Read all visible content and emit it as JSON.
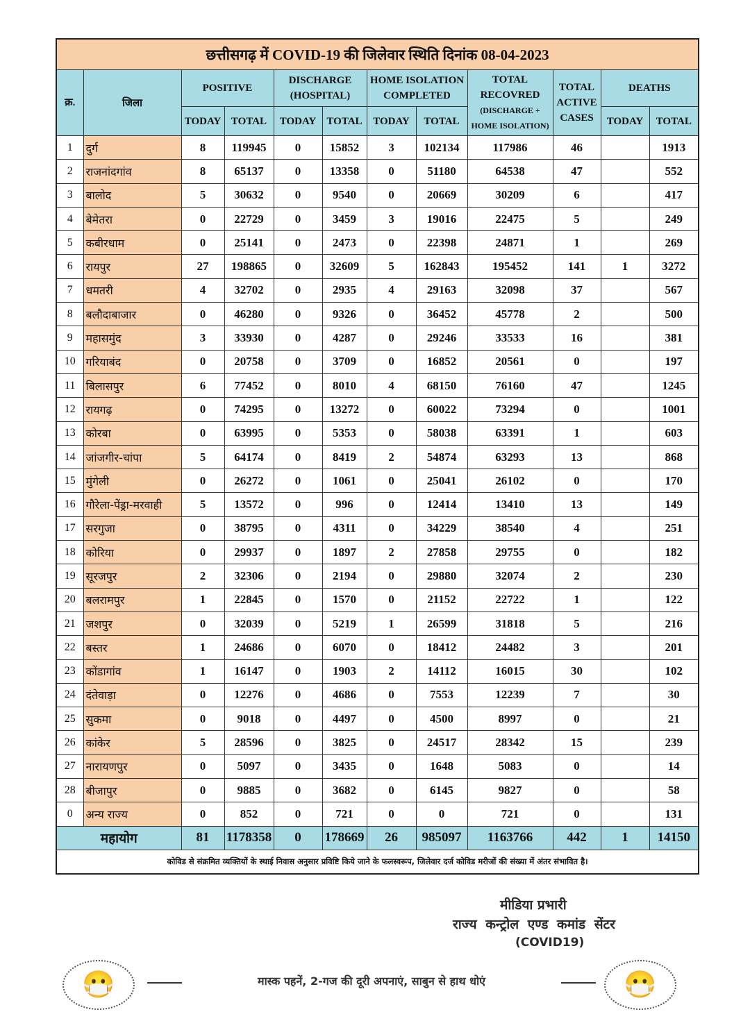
{
  "title": "छत्तीसगढ़ में COVID-19 की जिलेवार स्थिति दिनांक 08-04-2023",
  "headers": {
    "sn": "क्र.",
    "district": "जिला",
    "positive": "POSITIVE",
    "discharge": "DISCHARGE (HOSPITAL)",
    "home_isolation": "HOME ISOLATION COMPLETED",
    "recovered": "TOTAL RECOVRED",
    "recovered_sub": "(DISCHARGE + HOME ISOLATION)",
    "active": "TOTAL ACTIVE CASES",
    "deaths": "DEATHS",
    "today": "TODAY",
    "total": "TOTAL"
  },
  "rows": [
    [
      "1",
      "दुर्ग",
      "8",
      "119945",
      "0",
      "15852",
      "3",
      "102134",
      "117986",
      "46",
      "",
      "1913"
    ],
    [
      "2",
      "राजनांदगांव",
      "8",
      "65137",
      "0",
      "13358",
      "0",
      "51180",
      "64538",
      "47",
      "",
      "552"
    ],
    [
      "3",
      "बालोद",
      "5",
      "30632",
      "0",
      "9540",
      "0",
      "20669",
      "30209",
      "6",
      "",
      "417"
    ],
    [
      "4",
      "बेमेतरा",
      "0",
      "22729",
      "0",
      "3459",
      "3",
      "19016",
      "22475",
      "5",
      "",
      "249"
    ],
    [
      "5",
      "कबीरधाम",
      "0",
      "25141",
      "0",
      "2473",
      "0",
      "22398",
      "24871",
      "1",
      "",
      "269"
    ],
    [
      "6",
      "रायपुर",
      "27",
      "198865",
      "0",
      "32609",
      "5",
      "162843",
      "195452",
      "141",
      "1",
      "3272"
    ],
    [
      "7",
      "धमतरी",
      "4",
      "32702",
      "0",
      "2935",
      "4",
      "29163",
      "32098",
      "37",
      "",
      "567"
    ],
    [
      "8",
      "बलौदाबाजार",
      "0",
      "46280",
      "0",
      "9326",
      "0",
      "36452",
      "45778",
      "2",
      "",
      "500"
    ],
    [
      "9",
      "महासमुंद",
      "3",
      "33930",
      "0",
      "4287",
      "0",
      "29246",
      "33533",
      "16",
      "",
      "381"
    ],
    [
      "10",
      "गरियाबंद",
      "0",
      "20758",
      "0",
      "3709",
      "0",
      "16852",
      "20561",
      "0",
      "",
      "197"
    ],
    [
      "11",
      "बिलासपुर",
      "6",
      "77452",
      "0",
      "8010",
      "4",
      "68150",
      "76160",
      "47",
      "",
      "1245"
    ],
    [
      "12",
      "रायगढ़",
      "0",
      "74295",
      "0",
      "13272",
      "0",
      "60022",
      "73294",
      "0",
      "",
      "1001"
    ],
    [
      "13",
      "कोरबा",
      "0",
      "63995",
      "0",
      "5353",
      "0",
      "58038",
      "63391",
      "1",
      "",
      "603"
    ],
    [
      "14",
      "जांजगीर-चांपा",
      "5",
      "64174",
      "0",
      "8419",
      "2",
      "54874",
      "63293",
      "13",
      "",
      "868"
    ],
    [
      "15",
      "मुंगेली",
      "0",
      "26272",
      "0",
      "1061",
      "0",
      "25041",
      "26102",
      "0",
      "",
      "170"
    ],
    [
      "16",
      "गौरेला-पेंड्रा-मरवाही",
      "5",
      "13572",
      "0",
      "996",
      "0",
      "12414",
      "13410",
      "13",
      "",
      "149"
    ],
    [
      "17",
      "सरगुजा",
      "0",
      "38795",
      "0",
      "4311",
      "0",
      "34229",
      "38540",
      "4",
      "",
      "251"
    ],
    [
      "18",
      "कोरिया",
      "0",
      "29937",
      "0",
      "1897",
      "2",
      "27858",
      "29755",
      "0",
      "",
      "182"
    ],
    [
      "19",
      "सूरजपुर",
      "2",
      "32306",
      "0",
      "2194",
      "0",
      "29880",
      "32074",
      "2",
      "",
      "230"
    ],
    [
      "20",
      "बलरामपुर",
      "1",
      "22845",
      "0",
      "1570",
      "0",
      "21152",
      "22722",
      "1",
      "",
      "122"
    ],
    [
      "21",
      "जशपुर",
      "0",
      "32039",
      "0",
      "5219",
      "1",
      "26599",
      "31818",
      "5",
      "",
      "216"
    ],
    [
      "22",
      "बस्तर",
      "1",
      "24686",
      "0",
      "6070",
      "0",
      "18412",
      "24482",
      "3",
      "",
      "201"
    ],
    [
      "23",
      "कोंडागांव",
      "1",
      "16147",
      "0",
      "1903",
      "2",
      "14112",
      "16015",
      "30",
      "",
      "102"
    ],
    [
      "24",
      "दंतेवाड़ा",
      "0",
      "12276",
      "0",
      "4686",
      "0",
      "7553",
      "12239",
      "7",
      "",
      "30"
    ],
    [
      "25",
      "सुकमा",
      "0",
      "9018",
      "0",
      "4497",
      "0",
      "4500",
      "8997",
      "0",
      "",
      "21"
    ],
    [
      "26",
      "कांकेर",
      "5",
      "28596",
      "0",
      "3825",
      "0",
      "24517",
      "28342",
      "15",
      "",
      "239"
    ],
    [
      "27",
      "नारायणपुर",
      "0",
      "5097",
      "0",
      "3435",
      "0",
      "1648",
      "5083",
      "0",
      "",
      "14"
    ],
    [
      "28",
      "बीजापुर",
      "0",
      "9885",
      "0",
      "3682",
      "0",
      "6145",
      "9827",
      "0",
      "",
      "58"
    ],
    [
      "0",
      "अन्य राज्य",
      "0",
      "852",
      "0",
      "721",
      "0",
      "0",
      "721",
      "0",
      "",
      "131"
    ]
  ],
  "total": [
    "महायोग",
    "81",
    "1178358",
    "0",
    "178669",
    "26",
    "985097",
    "1163766",
    "442",
    "1",
    "14150"
  ],
  "note": "कोविड से संक्रमित व्यक्तियों के स्थाई निवास अनुसार प्रविष्टि किये जाने के फलस्वरूप, जिलेवार दर्ज कोविड मरीजों की संख्या में अंतर संभावित है।",
  "signature": {
    "line1": "मीडिया प्रभारी",
    "line2": "राज्य कन्ट्रोल एण्ड कमांड सेंटर",
    "line3": "(COVID19)"
  },
  "slogan": "मास्क पहनें, 2-गज की दूरी अपनाएं, साबुन से हाथ धोएं",
  "colors": {
    "title_bg": "#f8cfa9",
    "header_bg": "#a9dbe5",
    "district_bg": "#f8cfa9"
  }
}
